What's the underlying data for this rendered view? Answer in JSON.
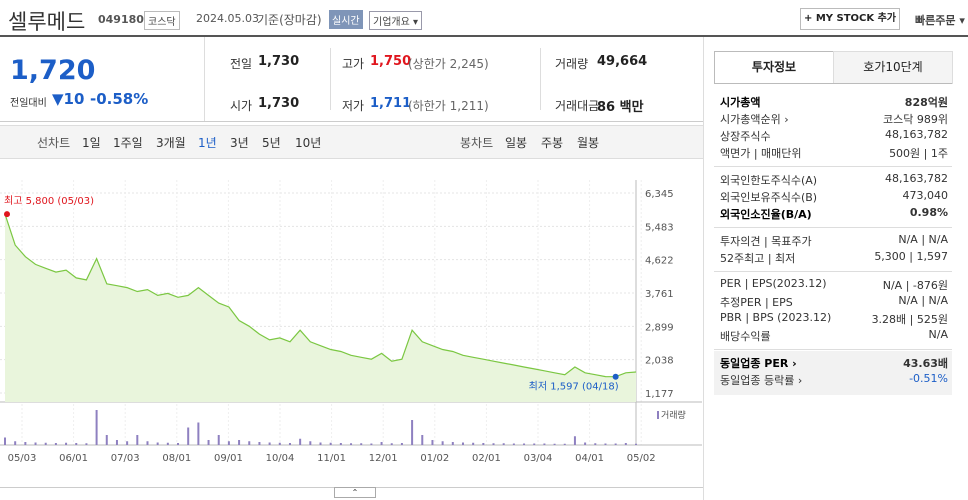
{
  "header": {
    "name": "셀루메드",
    "code": "049180",
    "market": "코스닥",
    "date": "2024.05.03",
    "basis": "기준(장마감)",
    "realtime": "실시간",
    "overview": "기업개요",
    "mystock": "+ MY STOCK 추가",
    "quick_order": "빠른주문"
  },
  "quote": {
    "price": "1,720",
    "change_label": "전일대비",
    "change": "▼10",
    "change_pct": "-0.58%",
    "items": [
      {
        "label": "전일",
        "value": "1,730"
      },
      {
        "label": "고가",
        "value": "1,750",
        "note": "(상한가 2,245)"
      },
      {
        "label": "거래량",
        "value": "49,664"
      },
      {
        "label": "시가",
        "value": "1,730"
      },
      {
        "label": "저가",
        "value": "1,711",
        "note": "(하한가 1,211)"
      },
      {
        "label": "거래대금",
        "value": "86 백만"
      }
    ]
  },
  "tabs": {
    "line_chart": "선차트",
    "line_periods": [
      "1일",
      "1주일",
      "3개월",
      "1년",
      "3년",
      "5년",
      "10년"
    ],
    "selected": "1년",
    "candle_chart": "봉차트",
    "candle_periods": [
      "일봉",
      "주봉",
      "월봉"
    ]
  },
  "price_chart": {
    "type": "line",
    "color": "#7bc742",
    "ylim": [
      1177,
      6345
    ],
    "yticks": [
      {
        "value": 6345,
        "label": "6,345"
      },
      {
        "value": 5483,
        "label": "5,483"
      },
      {
        "value": 4622,
        "label": "4,622"
      },
      {
        "value": 3761,
        "label": "3,761"
      },
      {
        "value": 2899,
        "label": "2,899"
      },
      {
        "value": 2038,
        "label": "2,038"
      },
      {
        "value": 1177,
        "label": "1,177"
      }
    ],
    "x_labels": [
      "05/03",
      "06/01",
      "07/03",
      "08/01",
      "09/01",
      "10/04",
      "11/01",
      "12/01",
      "01/02",
      "02/01",
      "03/04",
      "04/01",
      "05/02"
    ],
    "values": [
      5800,
      5000,
      4700,
      4500,
      4400,
      4300,
      4350,
      4150,
      4100,
      4650,
      4000,
      3950,
      3900,
      3800,
      3850,
      3700,
      3750,
      3650,
      3700,
      3900,
      3700,
      3500,
      3400,
      3050,
      2900,
      2700,
      2550,
      2600,
      2500,
      2800,
      2500,
      2400,
      2300,
      2250,
      2150,
      2100,
      2050,
      2200,
      2000,
      2050,
      2800,
      2500,
      2400,
      2300,
      2250,
      2150,
      2100,
      2050,
      2000,
      1950,
      1900,
      1850,
      1800,
      1750,
      1700,
      1650,
      1850,
      1700,
      1650,
      1600,
      1597,
      1700,
      1720
    ],
    "high_label": "최고 5,800 (05/03)",
    "low_label": "최저 1,597 (04/18)",
    "volume_label": "거래량",
    "volume_color": "#8e80c0",
    "volume_lim": [
      0,
      1600
    ],
    "volumes": [
      300,
      150,
      120,
      100,
      90,
      80,
      90,
      80,
      70,
      1400,
      400,
      200,
      150,
      400,
      150,
      100,
      90,
      80,
      700,
      900,
      200,
      400,
      150,
      200,
      150,
      120,
      100,
      90,
      80,
      250,
      150,
      100,
      90,
      80,
      70,
      70,
      60,
      120,
      70,
      80,
      1000,
      400,
      200,
      150,
      120,
      100,
      90,
      80,
      70,
      70,
      60,
      60,
      60,
      60,
      50,
      50,
      350,
      100,
      70,
      60,
      60,
      80,
      50
    ]
  },
  "side": {
    "tabs": [
      "투자정보",
      "호가10단계"
    ],
    "groups": [
      [
        {
          "label": "시가총액",
          "value": "828억원",
          "bold": true
        },
        {
          "label": "시가총액순위 ›",
          "value": "코스닥 989위"
        },
        {
          "label": "상장주식수",
          "value": "48,163,782"
        },
        {
          "label": "액면가 | 매매단위",
          "value": "500원 | 1주"
        }
      ],
      [
        {
          "label": "외국인한도주식수(A)",
          "value": "48,163,782"
        },
        {
          "label": "외국인보유주식수(B)",
          "value": "473,040"
        },
        {
          "label": "외국인소진율(B/A)",
          "value": "0.98%",
          "bold": true
        }
      ],
      [
        {
          "label": "투자의견 | 목표주가",
          "value": "N/A | N/A"
        },
        {
          "label": "52주최고 | 최저",
          "value": "5,300 | 1,597"
        }
      ],
      [
        {
          "label": "PER | EPS(2023.12)",
          "value": "N/A | -876원"
        },
        {
          "label": "추정PER | EPS",
          "value": "N/A | N/A"
        },
        {
          "label": "PBR | BPS (2023.12)",
          "value": "3.28배 | 525원"
        },
        {
          "label": "배당수익률",
          "value": "N/A"
        }
      ],
      [
        {
          "label": "동일업종 PER ›",
          "value": "43.63배",
          "bold": true
        },
        {
          "label": "동일업종 등락률 ›",
          "value": "-0.51%",
          "blue": true
        }
      ]
    ]
  }
}
